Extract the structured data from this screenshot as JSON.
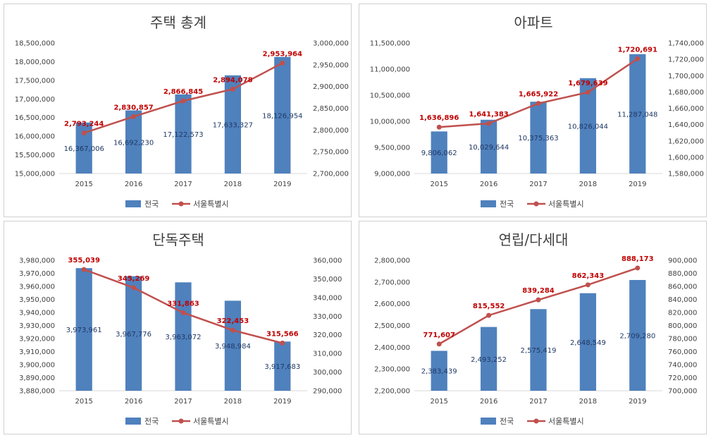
{
  "colors": {
    "bar": "#4f81bd",
    "line": "#c0504d",
    "bar_label": "#1f3864",
    "line_label": "#c00000"
  },
  "chart_data": [
    {
      "type": "bar",
      "title": "주택 총계",
      "categories": [
        "2015",
        "2016",
        "2017",
        "2018",
        "2019"
      ],
      "series": [
        {
          "name": "전국",
          "type": "bar",
          "axis": "left",
          "values": [
            16367006,
            16692230,
            17122573,
            17633327,
            18126954
          ],
          "labels": [
            "16,367,006",
            "16,692,230",
            "17,122,573",
            "17,633,327",
            "18,126,954"
          ]
        },
        {
          "name": "서울특별시",
          "type": "line",
          "axis": "right",
          "values": [
            2793244,
            2830857,
            2866845,
            2894078,
            2953964
          ],
          "labels": [
            "2,793,244",
            "2,830,857",
            "2,866,845",
            "2,894,078",
            "2,953,964"
          ]
        }
      ],
      "left_axis": {
        "ylim": [
          15000000,
          18500000
        ],
        "ticks": [
          "15,000,000",
          "15,500,000",
          "16,000,000",
          "16,500,000",
          "17,000,000",
          "17,500,000",
          "18,000,000",
          "18,500,000"
        ]
      },
      "right_axis": {
        "ylim": [
          2700000,
          3000000
        ],
        "ticks": [
          "2,700,000",
          "2,750,000",
          "2,800,000",
          "2,850,000",
          "2,900,000",
          "2,950,000",
          "3,000,000"
        ]
      },
      "legend": [
        "전국",
        "서울특별시"
      ]
    },
    {
      "type": "bar",
      "title": "아파트",
      "categories": [
        "2015",
        "2016",
        "2017",
        "2018",
        "2019"
      ],
      "series": [
        {
          "name": "전국",
          "type": "bar",
          "axis": "left",
          "values": [
            9806062,
            10029644,
            10375363,
            10826044,
            11287048
          ],
          "labels": [
            "9,806,062",
            "10,029,644",
            "10,375,363",
            "10,826,044",
            "11,287,048"
          ]
        },
        {
          "name": "서울특별시",
          "type": "line",
          "axis": "right",
          "values": [
            1636896,
            1641383,
            1665922,
            1679639,
            1720691
          ],
          "labels": [
            "1,636,896",
            "1,641,383",
            "1,665,922",
            "1,679,639",
            "1,720,691"
          ]
        }
      ],
      "left_axis": {
        "ylim": [
          9000000,
          11500000
        ],
        "ticks": [
          "9,000,000",
          "9,500,000",
          "10,000,000",
          "10,500,000",
          "11,000,000",
          "11,500,000"
        ]
      },
      "right_axis": {
        "ylim": [
          1580000,
          1740000
        ],
        "ticks": [
          "1,580,000",
          "1,600,000",
          "1,620,000",
          "1,640,000",
          "1,660,000",
          "1,680,000",
          "1,700,000",
          "1,720,000",
          "1,740,000"
        ]
      },
      "legend": [
        "전국",
        "서울특별시"
      ]
    },
    {
      "type": "bar",
      "title": "단독주택",
      "categories": [
        "2015",
        "2016",
        "2017",
        "2018",
        "2019"
      ],
      "series": [
        {
          "name": "전국",
          "type": "bar",
          "axis": "left",
          "values": [
            3973961,
            3967776,
            3963072,
            3948984,
            3917683
          ],
          "labels": [
            "3,973,961",
            "3,967,776",
            "3,963,072",
            "3,948,984",
            "3,917,683"
          ]
        },
        {
          "name": "서울특별시",
          "type": "line",
          "axis": "right",
          "values": [
            355039,
            345269,
            331863,
            322453,
            315566
          ],
          "labels": [
            "355,039",
            "345,269",
            "331,863",
            "322,453",
            "315,566"
          ]
        }
      ],
      "left_axis": {
        "ylim": [
          3880000,
          3980000
        ],
        "ticks": [
          "3,880,000",
          "3,890,000",
          "3,900,000",
          "3,910,000",
          "3,920,000",
          "3,930,000",
          "3,940,000",
          "3,950,000",
          "3,960,000",
          "3,970,000",
          "3,980,000"
        ]
      },
      "right_axis": {
        "ylim": [
          290000,
          360000
        ],
        "ticks": [
          "290,000",
          "300,000",
          "310,000",
          "320,000",
          "330,000",
          "340,000",
          "350,000",
          "360,000"
        ]
      },
      "legend": [
        "전국",
        "서울특별시"
      ]
    },
    {
      "type": "bar",
      "title": "연립/다세대",
      "categories": [
        "2015",
        "2016",
        "2017",
        "2018",
        "2019"
      ],
      "series": [
        {
          "name": "전국",
          "type": "bar",
          "axis": "left",
          "values": [
            2383439,
            2493252,
            2575419,
            2648549,
            2709280
          ],
          "labels": [
            "2,383,439",
            "2,493,252",
            "2,575,419",
            "2,648,549",
            "2,709,280"
          ]
        },
        {
          "name": "서울특별시",
          "type": "line",
          "axis": "right",
          "values": [
            771607,
            815552,
            839284,
            862343,
            888173
          ],
          "labels": [
            "771,607",
            "815,552",
            "839,284",
            "862,343",
            "888,173"
          ]
        }
      ],
      "left_axis": {
        "ylim": [
          2200000,
          2800000
        ],
        "ticks": [
          "2,200,000",
          "2,300,000",
          "2,400,000",
          "2,500,000",
          "2,600,000",
          "2,700,000",
          "2,800,000"
        ]
      },
      "right_axis": {
        "ylim": [
          700000,
          900000
        ],
        "ticks": [
          "700,000",
          "720,000",
          "740,000",
          "760,000",
          "780,000",
          "800,000",
          "820,000",
          "840,000",
          "860,000",
          "880,000",
          "900,000"
        ]
      },
      "legend": [
        "전국",
        "서울특별시"
      ]
    }
  ]
}
